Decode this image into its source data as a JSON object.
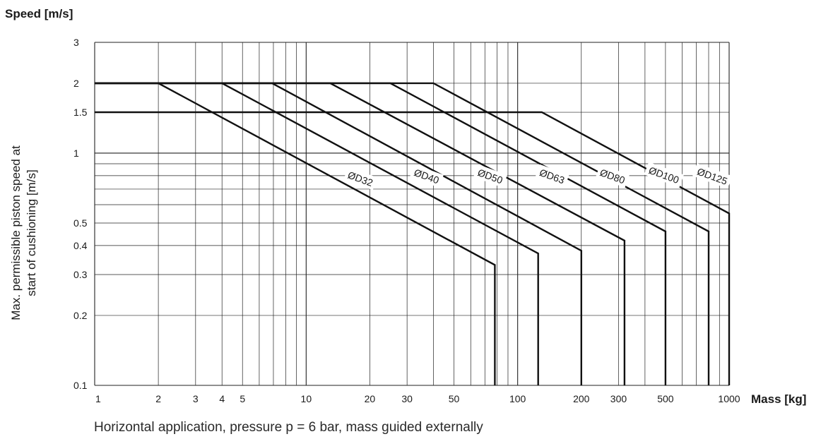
{
  "chart_data": {
    "type": "line",
    "title": "Speed [m/s]",
    "xlabel": "Mass [kg]",
    "ylabel_lines": [
      "Max. permissible piston speed at",
      "start of cushioning [m/s]"
    ],
    "caption": "Horizontal application, pressure p = 6 bar, mass guided externally",
    "xscale": "log",
    "yscale": "log",
    "xlim": [
      1,
      1000
    ],
    "ylim": [
      0.1,
      3
    ],
    "x_ticks": [
      1,
      2,
      3,
      4,
      5,
      10,
      20,
      30,
      50,
      100,
      200,
      300,
      500,
      1000
    ],
    "x_tick_labels": [
      "1",
      "2",
      "3",
      "4",
      "5",
      "10",
      "20",
      "30",
      "50",
      "100",
      "200",
      "300",
      "500",
      "1000"
    ],
    "y_ticks": [
      0.1,
      0.2,
      0.3,
      0.4,
      0.5,
      1,
      1.5,
      2,
      3
    ],
    "y_tick_labels": [
      "0.1",
      "0.2",
      "0.3",
      "0.4",
      "0.5",
      "1",
      "1.5",
      "2",
      "3"
    ],
    "grid": true,
    "series": [
      {
        "name": "ØD32",
        "points": [
          [
            1,
            2
          ],
          [
            2,
            2
          ],
          [
            78,
            0.33
          ],
          [
            78,
            0.1
          ]
        ]
      },
      {
        "name": "ØD40",
        "points": [
          [
            1,
            2
          ],
          [
            4,
            2
          ],
          [
            125,
            0.37
          ],
          [
            125,
            0.1
          ]
        ]
      },
      {
        "name": "ØD50",
        "points": [
          [
            1,
            2
          ],
          [
            6.9,
            2
          ],
          [
            200,
            0.38
          ],
          [
            200,
            0.1
          ]
        ]
      },
      {
        "name": "ØD63",
        "points": [
          [
            1,
            2
          ],
          [
            13,
            2
          ],
          [
            320,
            0.42
          ],
          [
            320,
            0.1
          ]
        ]
      },
      {
        "name": "ØD80",
        "points": [
          [
            1,
            2
          ],
          [
            25,
            2
          ],
          [
            500,
            0.46
          ],
          [
            500,
            0.1
          ]
        ]
      },
      {
        "name": "ØD100",
        "points": [
          [
            1,
            2
          ],
          [
            40,
            2
          ],
          [
            800,
            0.46
          ],
          [
            800,
            0.1
          ]
        ]
      },
      {
        "name": "ØD125",
        "points": [
          [
            1,
            1.5
          ],
          [
            130,
            1.5
          ],
          [
            1000,
            0.55
          ],
          [
            1000,
            0.1
          ]
        ]
      }
    ],
    "labels": [
      {
        "text": "ØD32",
        "at": [
          18.0,
          0.77
        ]
      },
      {
        "text": "ØD40",
        "at": [
          37.0,
          0.79
        ]
      },
      {
        "text": "ØD50",
        "at": [
          74.0,
          0.79
        ]
      },
      {
        "text": "ØD63",
        "at": [
          145.0,
          0.79
        ]
      },
      {
        "text": "ØD80",
        "at": [
          280.0,
          0.79
        ]
      },
      {
        "text": "ØD100",
        "at": [
          490.0,
          0.8
        ]
      },
      {
        "text": "ØD125",
        "at": [
          830.0,
          0.79
        ]
      }
    ]
  }
}
